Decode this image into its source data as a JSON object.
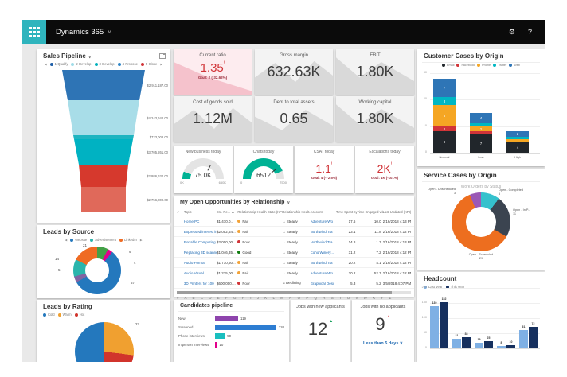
{
  "topbar": {
    "app_title": "Dynamics 365",
    "caret": "∨",
    "gear_icon": "⚙",
    "help_icon": "?"
  },
  "icons": {
    "popout": "popout",
    "legend_prev": "◀",
    "legend_next": "▶",
    "alert": "!",
    "up_triangle": "▲",
    "caret_down": "∨",
    "check": "✓"
  },
  "colors": {
    "gauge_teal": "#00b294",
    "gauge_track": "#e4e4e4",
    "accent_teal": "#2fb4bd"
  },
  "sales_pipeline": {
    "title": "Sales Pipeline",
    "legend": [
      {
        "label": "1-Qualify",
        "color": "#1f5fa9"
      },
      {
        "label": "2-Develop",
        "color": "#9fdce8"
      },
      {
        "label": "3-Develop",
        "color": "#00b0bc"
      },
      {
        "label": "4-Propose",
        "color": "#2e86c8"
      },
      {
        "label": "5-Close",
        "color": "#d13438"
      }
    ],
    "chart_data": {
      "type": "funnel",
      "segments": [
        {
          "label": "$2,911,187.00",
          "color": "#2e74b5"
        },
        {
          "label": "$4,243,642.00",
          "color": "#a8dde8"
        },
        {
          "label": "$723,008.00",
          "color": "#1fb4c0"
        },
        {
          "label": "$3,705,261.00",
          "color": "#00b2c2"
        },
        {
          "label": "$2,986,630.00",
          "color": "#d6392d"
        },
        {
          "label": "$2,756,000.00",
          "color": "#e0695a"
        }
      ]
    }
  },
  "leads_by_source": {
    "title": "Leads by Source",
    "legend": [
      {
        "label": "Website",
        "color": "#2478bd"
      },
      {
        "label": "Advertisement",
        "color": "#2ab5ac"
      },
      {
        "label": "LinkedIn",
        "color": "#ef6b23"
      }
    ],
    "chart_data": {
      "type": "donut",
      "slices": [
        {
          "value": 9,
          "color": "#43a047"
        },
        {
          "value": 4,
          "color": "#e3008c"
        },
        {
          "value": 67,
          "color": "#2478bd"
        },
        {
          "value": 5,
          "color": "#8064a2"
        },
        {
          "value": 14,
          "color": "#2ab5ac"
        },
        {
          "value": 21,
          "color": "#ef6b23"
        }
      ]
    }
  },
  "leads_by_rating": {
    "title": "Leads by Rating",
    "legend": [
      {
        "label": "Cold",
        "color": "#2478bd"
      },
      {
        "label": "Warm",
        "color": "#f0a030"
      },
      {
        "label": "Hot",
        "color": "#d1342c"
      }
    ],
    "chart_data": {
      "type": "pie",
      "slices": [
        {
          "label": "Warm",
          "value": 27,
          "color": "#f0a030"
        },
        {
          "label": "Hot",
          "value": 23,
          "color": "#d1342c"
        },
        {
          "label": "Cold",
          "value": 50,
          "color": "#2478bd"
        }
      ]
    }
  },
  "kpis": {
    "cards": [
      {
        "title": "Current ratio",
        "value": "1.35",
        "goal": "Goal: 2 (-32.62%)"
      },
      {
        "title": "Gross margin",
        "value": "632.63K"
      },
      {
        "title": "EBIT",
        "value": "1.80K"
      },
      {
        "title": "Cost of goods sold",
        "value": "1.12M"
      },
      {
        "title": "Debt to total assets",
        "value": "0.65"
      },
      {
        "title": "Working capital",
        "value": "1.80K"
      }
    ]
  },
  "gauge_row": {
    "cards": [
      {
        "type": "gauge",
        "title": "New business today",
        "value": "75.0K",
        "min_label": "0K",
        "max_label": "650K",
        "pct": 11.5,
        "needle_pct": 65
      },
      {
        "type": "gauge",
        "title": "Chats today",
        "value": "6512",
        "min_label": "0",
        "max_label": "7500",
        "pct": 87,
        "needle_pct": 78
      },
      {
        "type": "kpi",
        "title": "CSAT today",
        "value": "1.1",
        "goal": "Goal: 4 (-72.5%)"
      },
      {
        "type": "kpi",
        "title": "Escalations today",
        "value": "2K",
        "goal": "Goal: 1K (-101%)"
      }
    ]
  },
  "opportunities": {
    "title": "My Open Opportunities by Relationship",
    "columns": [
      "Topic",
      "Est. Re... ▲",
      "Relationship Health State (KPI)",
      "Relationship Healt...",
      "Account",
      "Time Spent by...",
      "Time Engaged with C...",
      "Last Updated (KPI)"
    ],
    "rows": [
      {
        "topic": "Home PC",
        "est": "$1,470,0...",
        "health": "Fair",
        "health_color": "#f2a33a",
        "trend_icon": "→",
        "trend": "Steady",
        "account": "Adventure Wo",
        "time_spent": "17.6",
        "time_engaged": "10.0",
        "updated": "2/16/2018 4:13 PM"
      },
      {
        "topic": "Expressed interest in A",
        "est": "$2,052,54...",
        "health": "Fair",
        "health_color": "#f2a33a",
        "trend_icon": "→",
        "trend": "Steady",
        "account": "Northwind Tra",
        "time_spent": "23.1",
        "time_engaged": "11.8",
        "updated": "2/16/2018 4:12 PM"
      },
      {
        "topic": "Portable Computing",
        "est": "$2,000,00...",
        "health": "Poor",
        "health_color": "#d13438",
        "trend_icon": "→",
        "trend": "Steady",
        "account": "Northwind Tra",
        "time_spent": "14.8",
        "time_engaged": "1.7",
        "updated": "2/16/2018 4:13 PM"
      },
      {
        "topic": "Replacing 3D scanners i",
        "est": "$1,046,35...",
        "health": "Good",
        "health_color": "#107c10",
        "trend_icon": "→",
        "trend": "Steady",
        "account": "Coho Winery...",
        "time_spent": "31.2",
        "time_engaged": "7.2",
        "updated": "2/16/2018 4:12 PM"
      },
      {
        "topic": "Audio Format",
        "est": "$1,710,60...",
        "health": "Fair",
        "health_color": "#f2a33a",
        "trend_icon": "→",
        "trend": "Steady",
        "account": "Northwind Tra",
        "time_spent": "20.2",
        "time_engaged": "4.1",
        "updated": "2/16/2018 4:12 PM"
      },
      {
        "topic": "Audio Visual",
        "est": "$1,275,00...",
        "health": "Fair",
        "health_color": "#f2a33a",
        "trend_icon": "→",
        "trend": "Steady",
        "account": "Adventure Wo",
        "time_spent": "20.2",
        "time_engaged": "52.7",
        "updated": "2/16/2018 4:12 PM"
      },
      {
        "topic": "3D Printers for 100",
        "est": "$600,000....",
        "health": "Poor",
        "health_color": "#d13438",
        "trend_icon": "↘",
        "trend": "Declining",
        "account": "Graphical Desi",
        "time_spent": "5.3",
        "time_engaged": "5.2",
        "updated": "3/5/2018 4:07 PM"
      }
    ],
    "alphabet": "# A B C D E F G H I J K L M N O P Q R S T U V W X Y Z"
  },
  "candidates": {
    "title": "Candidates pipeline",
    "chart_data": {
      "type": "bar",
      "xmax": 320,
      "bars": [
        {
          "label": "New",
          "value": 119,
          "color": "#8e44ad"
        },
        {
          "label": "Screened",
          "value": 320,
          "color": "#2d7dd2"
        },
        {
          "label": "Phone interviews",
          "value": 50,
          "color": "#1abfbf"
        },
        {
          "label": "In person interviews",
          "value": 10,
          "color": "#e3008c"
        }
      ]
    }
  },
  "jobs_new": {
    "title": "Jobs with new applicants",
    "value": "12"
  },
  "jobs_no": {
    "title": "Jobs with no applicants",
    "value": "9",
    "link": "Less than 5 days ∨"
  },
  "customer_cases": {
    "title": "Customer Cases by Origin",
    "chart_data": {
      "type": "stacked-bar",
      "categories": [
        "Normal",
        "Low",
        "High"
      ],
      "series": [
        {
          "name": "Email",
          "color": "#21262b",
          "values": [
            8,
            7,
            4
          ]
        },
        {
          "name": "Facebook",
          "color": "#d13438",
          "values": [
            2,
            1,
            0
          ]
        },
        {
          "name": "Phone",
          "color": "#f5a623",
          "values": [
            8,
            2,
            1
          ]
        },
        {
          "name": "Twitter",
          "color": "#00b7c3",
          "values": [
            3,
            1,
            1
          ]
        },
        {
          "name": "Web",
          "color": "#2e75b6",
          "values": [
            7,
            4,
            2
          ]
        }
      ],
      "ylim": [
        0,
        30
      ],
      "yticks": [
        "30",
        "20",
        "10",
        "0"
      ]
    }
  },
  "service_cases": {
    "title": "Service Cases by Origin",
    "subtitle": "Work Orders by Status",
    "chart_data": {
      "type": "donut",
      "slices": [
        {
          "label": "Open - Completed",
          "value": 5,
          "color": "#35c1cd"
        },
        {
          "label": "Open - In P...",
          "value": 11,
          "color": "#3b4450"
        },
        {
          "label": "Open - Scheduled",
          "value": 29,
          "color": "#ed6e1f"
        },
        {
          "label": "Open - Unscheduled",
          "value": 3,
          "color": "#9b59b6"
        }
      ]
    }
  },
  "headcount": {
    "title": "Headcount",
    "legend": [
      {
        "label": "Last year",
        "color": "#7fb0e4"
      },
      {
        "label": "This year",
        "color": "#16305e"
      }
    ],
    "chart_data": {
      "type": "grouped-bar",
      "series": [
        {
          "name": "Last year",
          "color": "#7fb0e4",
          "values": [
            139,
            31,
            19,
            8,
            61
          ]
        },
        {
          "name": "This year",
          "color": "#16305e",
          "values": [
            152,
            38,
            25,
            10,
            72
          ]
        }
      ],
      "ylim": [
        0,
        200
      ],
      "yticks": [
        "200",
        "150",
        "100",
        "50",
        "0"
      ]
    }
  }
}
